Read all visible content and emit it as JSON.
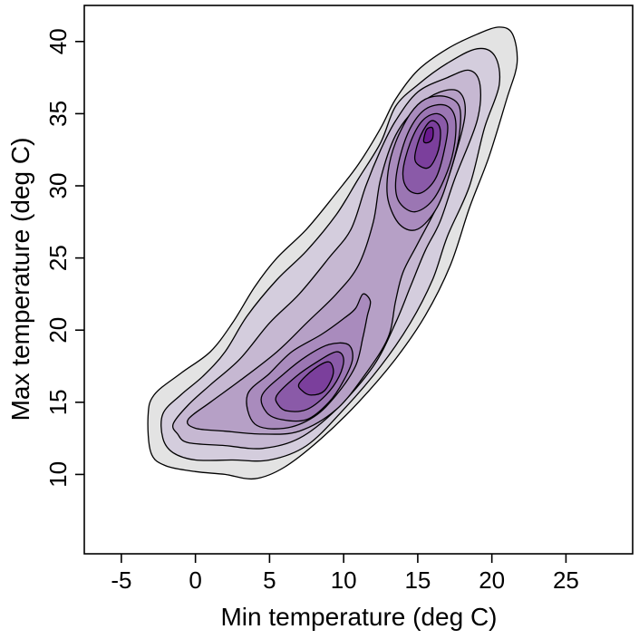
{
  "chart_data": {
    "type": "contour",
    "title": "",
    "xlabel": "Min temperature (deg C)",
    "ylabel": "Max temperature (deg C)",
    "xlim": [
      -7.5,
      29.5
    ],
    "ylim": [
      4.5,
      42.5
    ],
    "x_ticks": [
      -5,
      0,
      5,
      10,
      15,
      20,
      25
    ],
    "y_ticks": [
      10,
      15,
      20,
      25,
      30,
      35,
      40
    ],
    "x_tick_labels": [
      "-5",
      "0",
      "5",
      "10",
      "15",
      "20",
      "25"
    ],
    "y_tick_labels": [
      "10",
      "15",
      "20",
      "25",
      "30",
      "35",
      "40"
    ],
    "grid": false,
    "legend": "none",
    "line_color": "#000000",
    "levels": [
      {
        "level": 1,
        "fill": "#e3e3e3",
        "regions": [
          [
            [
              -3.2,
              14.0
            ],
            [
              -2.8,
              15.5
            ],
            [
              -1.0,
              17.0
            ],
            [
              1.0,
              18.5
            ],
            [
              2.5,
              20.5
            ],
            [
              4.0,
              23.0
            ],
            [
              5.5,
              25.0
            ],
            [
              7.5,
              27.0
            ],
            [
              9.5,
              29.5
            ],
            [
              11.0,
              31.5
            ],
            [
              12.5,
              34.0
            ],
            [
              13.5,
              36.0
            ],
            [
              15.0,
              38.0
            ],
            [
              17.0,
              39.5
            ],
            [
              19.0,
              40.5
            ],
            [
              20.5,
              41.0
            ],
            [
              21.4,
              40.5
            ],
            [
              21.7,
              38.5
            ],
            [
              21.0,
              36.0
            ],
            [
              19.8,
              32.0
            ],
            [
              18.5,
              28.5
            ],
            [
              17.2,
              24.5
            ],
            [
              15.5,
              21.0
            ],
            [
              13.5,
              18.0
            ],
            [
              11.0,
              15.0
            ],
            [
              8.5,
              12.5
            ],
            [
              6.0,
              10.5
            ],
            [
              4.0,
              9.7
            ],
            [
              2.0,
              10.0
            ],
            [
              0.0,
              10.2
            ],
            [
              -2.0,
              10.6
            ],
            [
              -3.0,
              11.5
            ]
          ]
        ]
      },
      {
        "level": 2,
        "fill": "#d4cddd",
        "regions": [
          [
            [
              -2.2,
              14.2
            ],
            [
              -1.0,
              15.5
            ],
            [
              0.5,
              16.8
            ],
            [
              2.0,
              18.5
            ],
            [
              3.5,
              21.0
            ],
            [
              5.5,
              23.5
            ],
            [
              7.5,
              25.5
            ],
            [
              9.5,
              28.0
            ],
            [
              11.0,
              30.5
            ],
            [
              12.5,
              33.0
            ],
            [
              13.5,
              35.5
            ],
            [
              15.0,
              37.0
            ],
            [
              17.0,
              38.5
            ],
            [
              19.0,
              39.5
            ],
            [
              20.2,
              39.0
            ],
            [
              20.5,
              37.0
            ],
            [
              19.5,
              34.0
            ],
            [
              18.5,
              30.0
            ],
            [
              17.0,
              26.5
            ],
            [
              16.0,
              23.5
            ],
            [
              14.5,
              20.5
            ],
            [
              12.5,
              17.5
            ],
            [
              10.0,
              14.5
            ],
            [
              7.5,
              12.0
            ],
            [
              5.0,
              11.0
            ],
            [
              2.5,
              11.0
            ],
            [
              0.0,
              11.0
            ],
            [
              -1.5,
              11.5
            ],
            [
              -2.2,
              12.5
            ]
          ]
        ]
      },
      {
        "level": 3,
        "fill": "#c6b8d2",
        "regions": [
          [
            [
              -1.5,
              13.5
            ],
            [
              -0.5,
              14.8
            ],
            [
              1.0,
              16.2
            ],
            [
              3.0,
              18.0
            ],
            [
              5.0,
              20.5
            ],
            [
              7.0,
              22.5
            ],
            [
              9.0,
              25.0
            ],
            [
              10.5,
              27.0
            ],
            [
              11.5,
              30.0
            ],
            [
              12.5,
              32.5
            ],
            [
              13.5,
              34.5
            ],
            [
              15.0,
              36.5
            ],
            [
              17.0,
              37.5
            ],
            [
              18.5,
              38.0
            ],
            [
              19.2,
              37.0
            ],
            [
              19.0,
              34.5
            ],
            [
              17.5,
              30.5
            ],
            [
              16.5,
              27.5
            ],
            [
              15.5,
              25.5
            ],
            [
              14.5,
              23.0
            ],
            [
              13.5,
              20.5
            ],
            [
              12.0,
              17.5
            ],
            [
              9.5,
              14.5
            ],
            [
              7.0,
              12.5
            ],
            [
              4.5,
              11.8
            ],
            [
              2.0,
              12.0
            ],
            [
              -0.5,
              12.2
            ],
            [
              -1.2,
              12.8
            ]
          ]
        ]
      },
      {
        "level": 4,
        "fill": "#b6a0c6",
        "regions": [
          [
            [
              -0.5,
              13.8
            ],
            [
              1.0,
              15.0
            ],
            [
              3.0,
              16.5
            ],
            [
              5.5,
              18.5
            ],
            [
              7.5,
              20.5
            ],
            [
              9.5,
              22.5
            ],
            [
              11.0,
              24.5
            ],
            [
              12.0,
              27.5
            ],
            [
              12.5,
              30.5
            ],
            [
              13.5,
              33.5
            ],
            [
              15.0,
              35.5
            ],
            [
              16.5,
              36.5
            ],
            [
              17.8,
              36.5
            ],
            [
              18.2,
              35.0
            ],
            [
              17.5,
              32.0
            ],
            [
              16.5,
              29.0
            ],
            [
              15.0,
              26.0
            ],
            [
              14.0,
              24.0
            ],
            [
              13.5,
              22.0
            ],
            [
              13.0,
              19.5
            ],
            [
              11.5,
              17.0
            ],
            [
              9.5,
              14.5
            ],
            [
              7.0,
              13.0
            ],
            [
              4.5,
              12.8
            ],
            [
              2.0,
              13.0
            ],
            [
              0.0,
              13.2
            ]
          ]
        ]
      },
      {
        "level": 5,
        "fill": "#a98bbd",
        "regions": [
          [
            [
              3.5,
              15.5
            ],
            [
              5.0,
              17.0
            ],
            [
              6.5,
              18.5
            ],
            [
              8.5,
              19.7
            ],
            [
              10.0,
              20.8
            ],
            [
              10.8,
              21.5
            ],
            [
              11.3,
              22.5
            ],
            [
              11.8,
              22.0
            ],
            [
              11.6,
              21.0
            ],
            [
              11.3,
              19.5
            ],
            [
              10.8,
              17.5
            ],
            [
              9.5,
              15.5
            ],
            [
              8.0,
              14.0
            ],
            [
              6.0,
              13.2
            ],
            [
              4.0,
              13.5
            ]
          ],
          [
            [
              13.0,
              29.0
            ],
            [
              13.0,
              31.0
            ],
            [
              13.5,
              33.0
            ],
            [
              14.5,
              35.0
            ],
            [
              15.5,
              36.0
            ],
            [
              16.8,
              36.2
            ],
            [
              17.8,
              35.5
            ],
            [
              17.8,
              33.5
            ],
            [
              17.2,
              31.0
            ],
            [
              16.3,
              28.5
            ],
            [
              15.0,
              27.0
            ],
            [
              13.8,
              27.3
            ]
          ]
        ]
      },
      {
        "level": 6,
        "fill": "#9b76b3",
        "regions": [
          [
            [
              4.5,
              15.5
            ],
            [
              6.0,
              17.0
            ],
            [
              7.5,
              18.2
            ],
            [
              9.0,
              19.0
            ],
            [
              10.3,
              19.0
            ],
            [
              10.6,
              18.0
            ],
            [
              10.0,
              16.5
            ],
            [
              9.0,
              15.0
            ],
            [
              7.5,
              13.8
            ],
            [
              5.8,
              13.8
            ],
            [
              4.8,
              14.3
            ]
          ],
          [
            [
              13.5,
              30.0
            ],
            [
              13.8,
              32.0
            ],
            [
              14.5,
              34.0
            ],
            [
              15.5,
              35.3
            ],
            [
              16.8,
              35.6
            ],
            [
              17.5,
              34.8
            ],
            [
              17.5,
              33.0
            ],
            [
              17.0,
              31.0
            ],
            [
              16.0,
              29.0
            ],
            [
              14.8,
              28.2
            ],
            [
              13.8,
              28.8
            ]
          ]
        ]
      },
      {
        "level": 7,
        "fill": "#8a5aa8",
        "regions": [
          [
            [
              5.5,
              15.5
            ],
            [
              6.8,
              16.8
            ],
            [
              8.2,
              17.8
            ],
            [
              9.5,
              18.5
            ],
            [
              10.0,
              18.0
            ],
            [
              9.7,
              16.8
            ],
            [
              8.8,
              15.5
            ],
            [
              7.5,
              14.5
            ],
            [
              6.2,
              14.4
            ],
            [
              5.6,
              14.8
            ]
          ],
          [
            [
              14.0,
              31.0
            ],
            [
              14.5,
              33.0
            ],
            [
              15.3,
              34.5
            ],
            [
              16.3,
              35.0
            ],
            [
              17.0,
              34.3
            ],
            [
              16.8,
              32.5
            ],
            [
              16.2,
              30.5
            ],
            [
              15.2,
              29.5
            ],
            [
              14.3,
              29.8
            ]
          ]
        ]
      },
      {
        "level": 8,
        "fill": "#7b3f9c",
        "regions": [
          [
            [
              7.0,
              16.3
            ],
            [
              8.0,
              17.3
            ],
            [
              9.0,
              17.8
            ],
            [
              9.3,
              17.0
            ],
            [
              8.7,
              15.8
            ],
            [
              7.8,
              15.5
            ],
            [
              7.2,
              15.8
            ]
          ],
          [
            [
              14.8,
              32.0
            ],
            [
              15.2,
              33.5
            ],
            [
              15.9,
              34.5
            ],
            [
              16.5,
              34.0
            ],
            [
              16.4,
              32.5
            ],
            [
              15.8,
              31.3
            ],
            [
              15.1,
              31.4
            ]
          ]
        ]
      },
      {
        "level": 9,
        "fill": "#6a1a8e",
        "regions": [
          [
            [
              15.4,
              33.1
            ],
            [
              15.6,
              33.9
            ],
            [
              16.0,
              34.0
            ],
            [
              16.0,
              33.3
            ],
            [
              15.7,
              33.0
            ]
          ]
        ]
      }
    ]
  }
}
